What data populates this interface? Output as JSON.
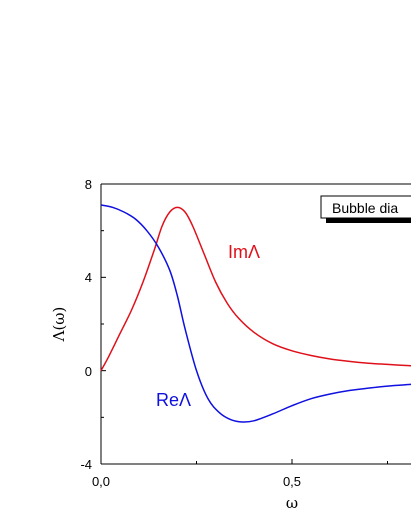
{
  "chart_data": {
    "type": "line",
    "xlabel": "ω",
    "ylabel": "Λ(ω)",
    "xlim": [
      0,
      0.85
    ],
    "ylim": [
      -4,
      8
    ],
    "x_ticks": [
      "0,0",
      "0,5"
    ],
    "y_ticks": [
      "-4",
      "0",
      "4",
      "8"
    ],
    "legend_text": "Bubble dia",
    "series": [
      {
        "name": "ImΛ",
        "color": "#e0101a",
        "x": [
          0.0,
          0.02,
          0.05,
          0.08,
          0.11,
          0.14,
          0.16,
          0.18,
          0.2,
          0.22,
          0.24,
          0.27,
          0.3,
          0.33,
          0.36,
          0.4,
          0.45,
          0.5,
          0.55,
          0.6,
          0.65,
          0.7,
          0.75,
          0.8,
          0.85
        ],
        "y": [
          0.0,
          0.6,
          1.6,
          2.6,
          3.8,
          5.2,
          6.2,
          6.8,
          7.0,
          6.8,
          6.2,
          5.0,
          3.8,
          2.9,
          2.25,
          1.65,
          1.15,
          0.85,
          0.65,
          0.5,
          0.4,
          0.32,
          0.27,
          0.22,
          0.18
        ]
      },
      {
        "name": "ReΛ",
        "color": "#1010e0",
        "x": [
          0.0,
          0.03,
          0.06,
          0.09,
          0.12,
          0.15,
          0.18,
          0.2,
          0.22,
          0.25,
          0.28,
          0.31,
          0.34,
          0.37,
          0.4,
          0.45,
          0.5,
          0.55,
          0.6,
          0.65,
          0.7,
          0.75,
          0.8,
          0.85
        ],
        "y": [
          7.1,
          7.0,
          6.8,
          6.5,
          6.0,
          5.3,
          4.3,
          3.2,
          1.8,
          0.0,
          -1.2,
          -1.8,
          -2.1,
          -2.2,
          -2.15,
          -1.85,
          -1.5,
          -1.2,
          -1.0,
          -0.85,
          -0.75,
          -0.66,
          -0.6,
          -0.55
        ]
      }
    ]
  }
}
